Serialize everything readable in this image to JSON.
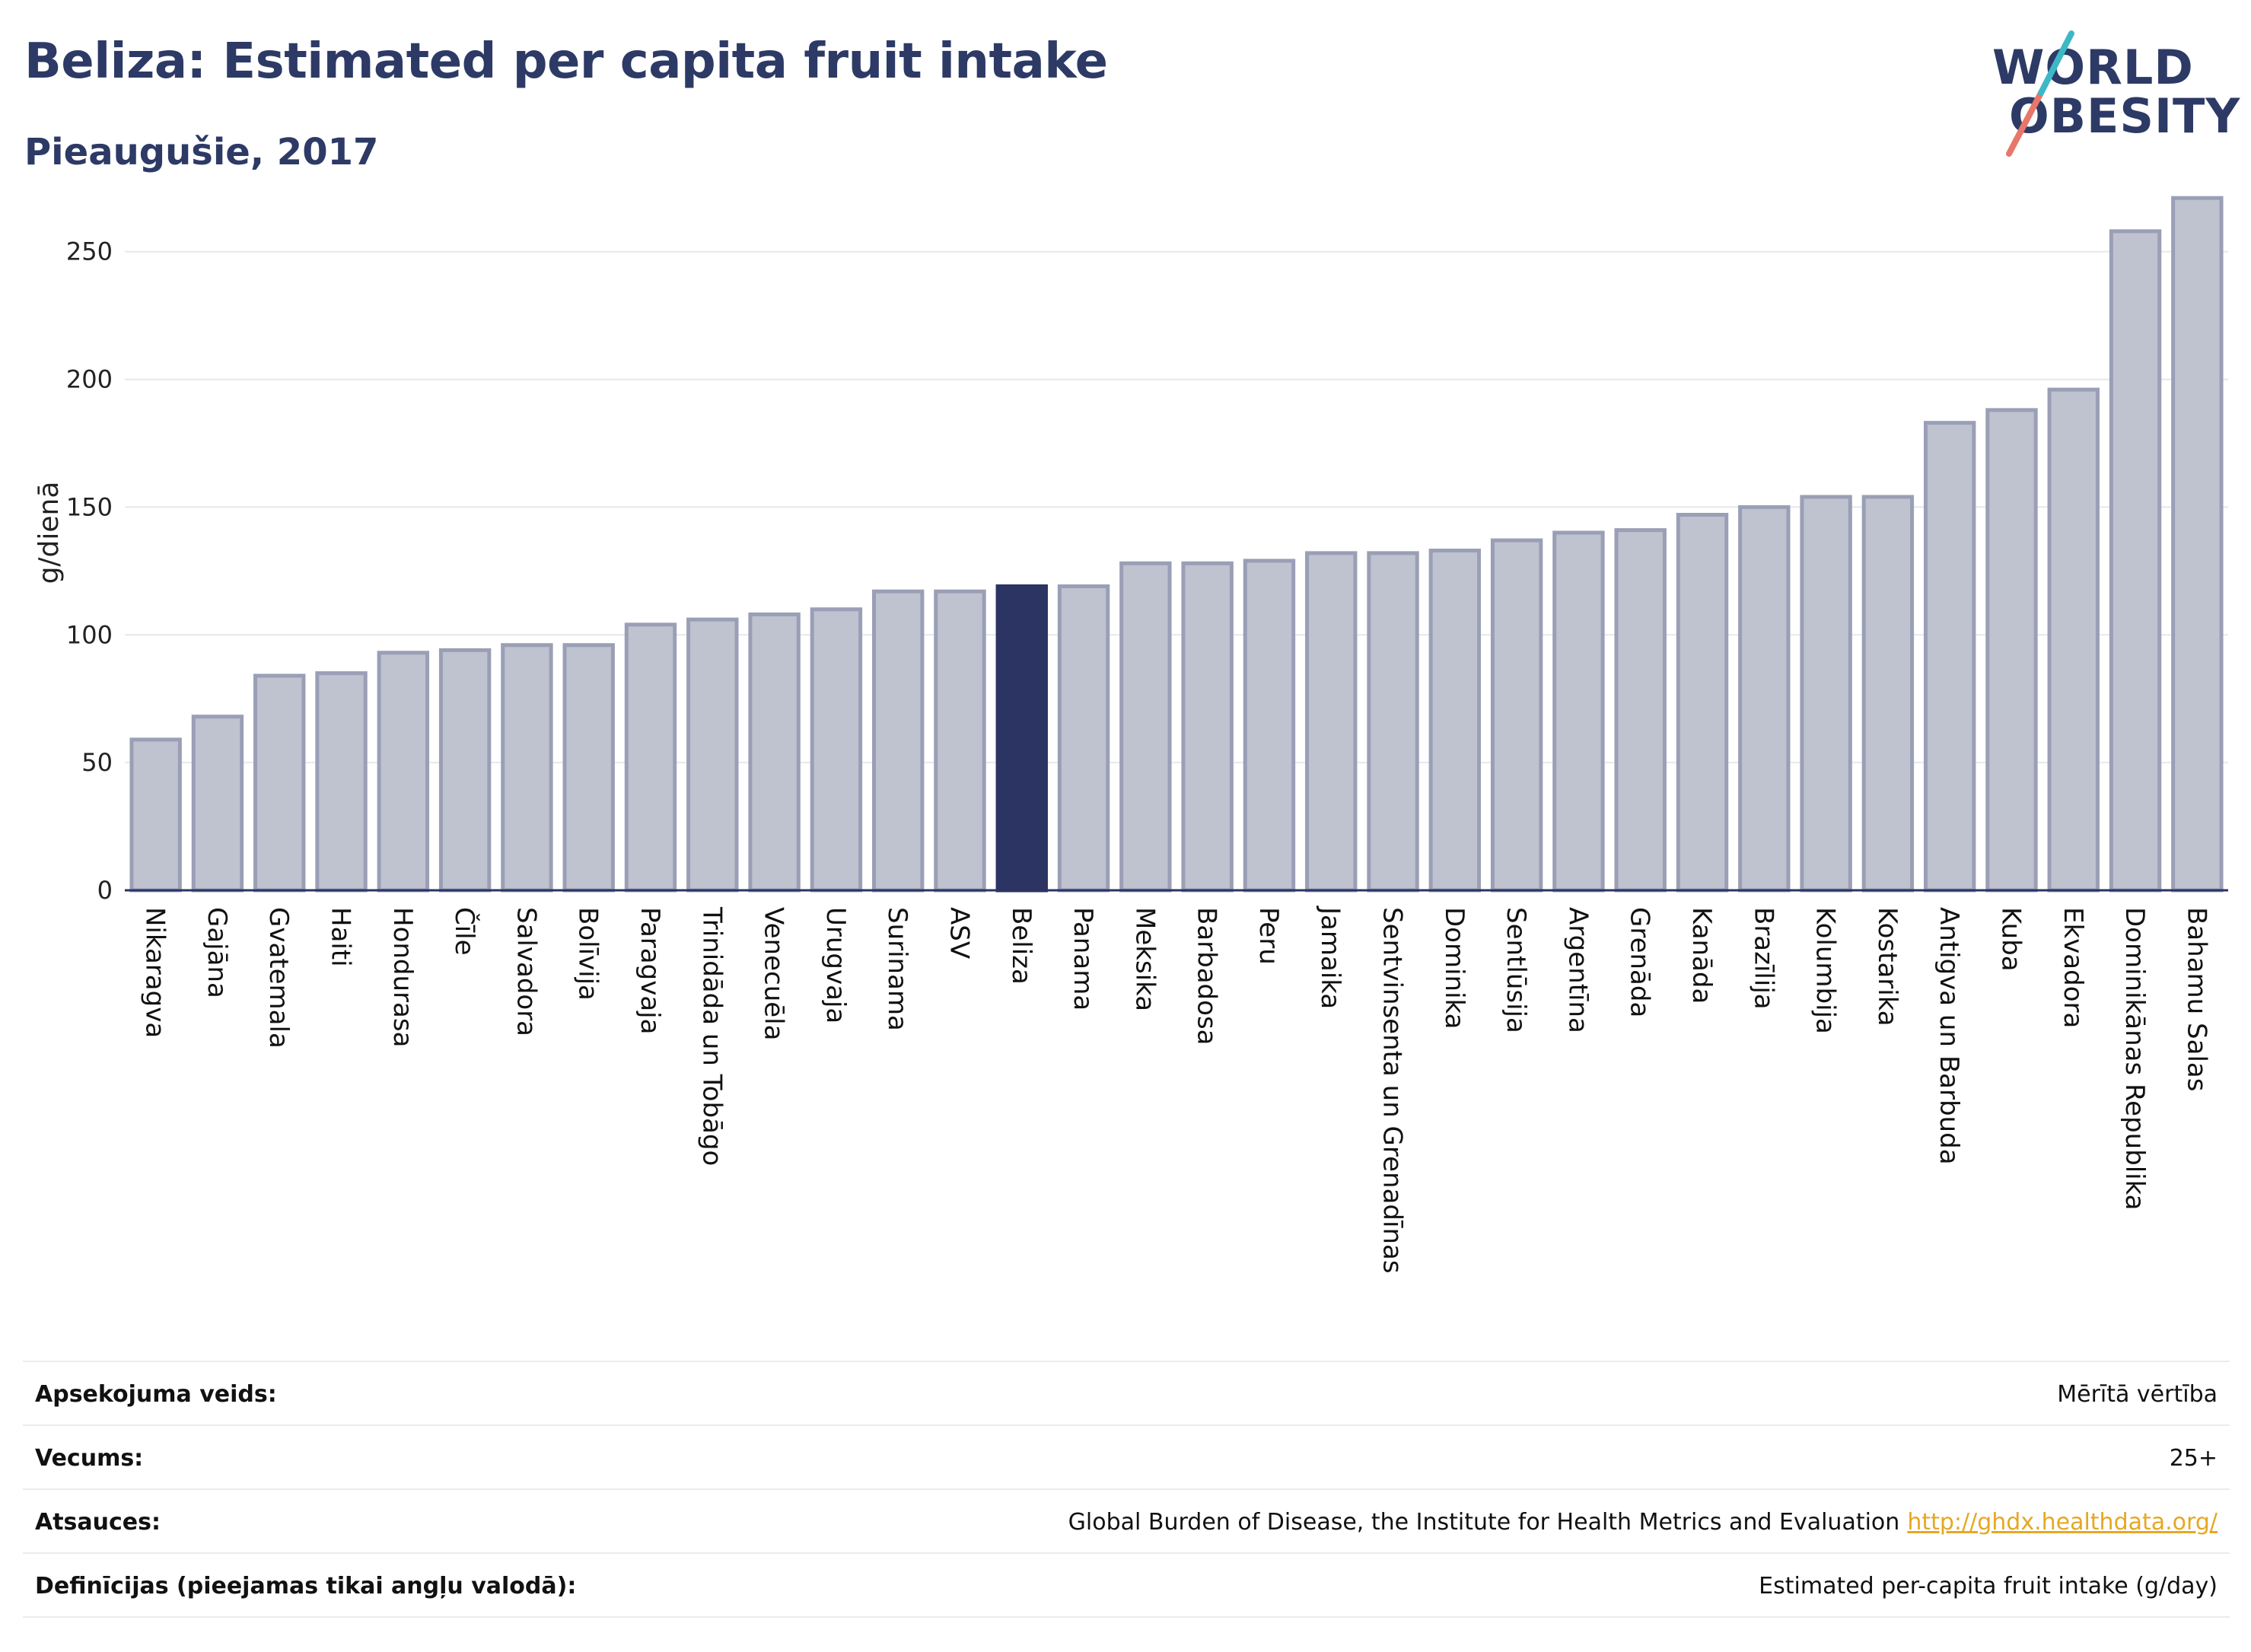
{
  "header": {
    "title": "Beliza: Estimated per capita fruit intake",
    "subtitle": "Pieaugušie, 2017"
  },
  "logo": {
    "line1": "WORLD",
    "line2": "OBESITY",
    "accent_colors": [
      "#e8766a",
      "#3cb8c6"
    ]
  },
  "colors": {
    "highlight": "#2b3462",
    "bar_fill": "#bfc2cf",
    "bar_stroke": "#9a9fb6",
    "grid": "#e6e8ec",
    "link": "#e5a823"
  },
  "chart_data": {
    "type": "bar",
    "ylabel": "g/dienā",
    "ylim": [
      0,
      280
    ],
    "yticks": [
      0,
      50,
      100,
      150,
      200,
      250
    ],
    "grid": true,
    "highlight_category": "Beliza",
    "categories": [
      "Nikaragva",
      "Gajāna",
      "Gvatemala",
      "Haiti",
      "Hondurasa",
      "Čīle",
      "Salvadora",
      "Bolīvija",
      "Paragvaja",
      "Trinidāda un Tobāgo",
      "Venecuēla",
      "Urugvaja",
      "Surinama",
      "ASV",
      "Beliza",
      "Panama",
      "Meksika",
      "Barbadosa",
      "Peru",
      "Jamaika",
      "Sentvinsenta un Grenadīnas",
      "Dominika",
      "Sentlūsija",
      "Argentīna",
      "Grenāda",
      "Kanāda",
      "Brazīlija",
      "Kolumbija",
      "Kostarika",
      "Antigva un Barbuda",
      "Kuba",
      "Ekvadora",
      "Dominikānas Republika",
      "Bahamu Salas"
    ],
    "values": [
      59,
      68,
      84,
      85,
      93,
      94,
      96,
      96,
      104,
      106,
      108,
      110,
      117,
      117,
      119,
      119,
      128,
      128,
      129,
      132,
      132,
      133,
      137,
      140,
      141,
      147,
      150,
      154,
      154,
      183,
      188,
      196,
      258,
      271
    ]
  },
  "meta": {
    "rows": [
      {
        "label": "Apsekojuma veids:",
        "value": "Mērītā vērtība",
        "link": ""
      },
      {
        "label": "Vecums:",
        "value": "25+",
        "link": ""
      },
      {
        "label": "Atsauces:",
        "value": "Global Burden of Disease, the Institute for Health Metrics and Evaluation",
        "link": "http://ghdx.healthdata.org/"
      },
      {
        "label": "Definīcijas (pieejamas tikai angļu valodā):",
        "value": "Estimated per-capita fruit intake (g/day)",
        "link": ""
      }
    ]
  }
}
